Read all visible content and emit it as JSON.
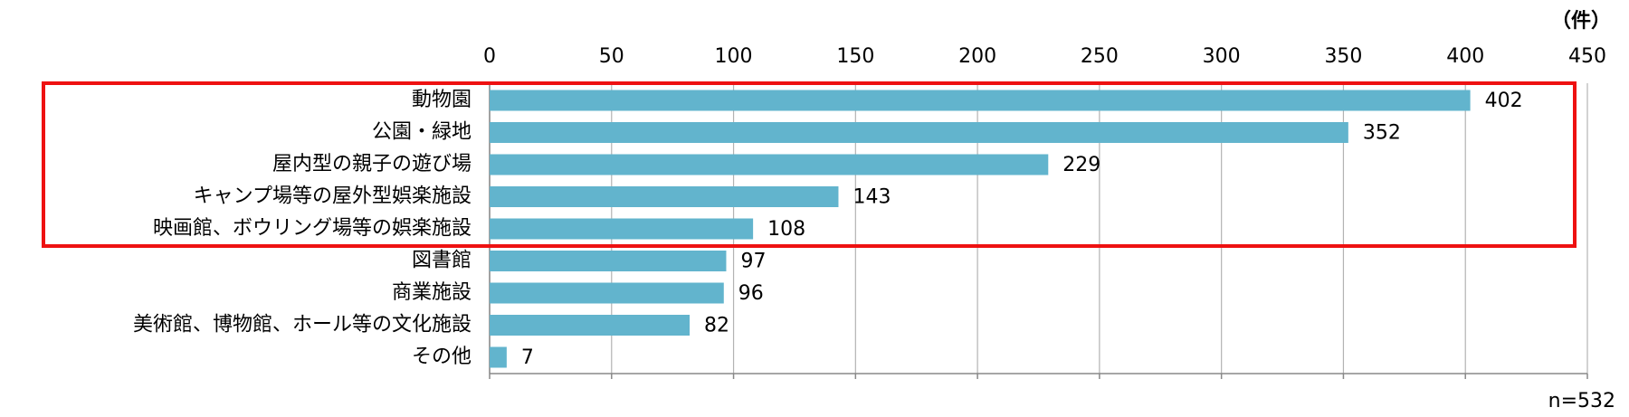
{
  "chart_data": {
    "type": "bar",
    "orientation": "horizontal",
    "unit_label": "（件）",
    "note": "n=532",
    "categories": [
      "動物園",
      "公園・緑地",
      "屋内型の親子の遊び場",
      "キャンプ場等の屋外型娯楽施設",
      "映画館、ボウリング場等の娯楽施設",
      "図書館",
      "商業施設",
      "美術館、博物館、ホール等の文化施設",
      "その他"
    ],
    "values": [
      402,
      352,
      229,
      143,
      108,
      97,
      96,
      82,
      7
    ],
    "color": "#62b4cd",
    "xlim": [
      0,
      450
    ],
    "xticks": [
      0,
      50,
      100,
      150,
      200,
      250,
      300,
      350,
      400,
      450
    ],
    "grid": true
  }
}
